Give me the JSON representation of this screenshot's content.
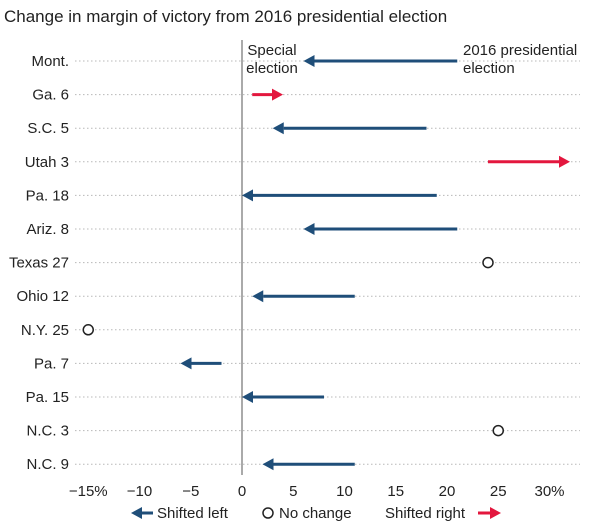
{
  "chart_data": {
    "type": "arrow-dot",
    "title": "Change in margin of victory from 2016 presidential election",
    "xlabel": "",
    "ylabel": "",
    "xlim": [
      -16,
      32
    ],
    "x_ticks": [
      -15,
      -10,
      -5,
      0,
      5,
      10,
      15,
      20,
      25,
      30
    ],
    "x_tick_labels": [
      "−15%",
      "−10",
      "−5",
      "0",
      "5",
      "10",
      "15",
      "20",
      "25",
      "30%"
    ],
    "colors": {
      "shifted_left": "#1f4e79",
      "shifted_right": "#e3173e",
      "no_change": "#222222"
    },
    "annotations": {
      "special_election": [
        "Special",
        "election"
      ],
      "presidential_2016": [
        "2016 presidential",
        "election"
      ]
    },
    "legend": {
      "shifted_left": "Shifted left",
      "no_change": "No change",
      "shifted_right": "Shifted right"
    },
    "rows": [
      {
        "label": "Mont.",
        "from_2016": 21,
        "special": 6,
        "direction": "left"
      },
      {
        "label": "Ga. 6",
        "from_2016": 1,
        "special": 4,
        "direction": "right"
      },
      {
        "label": "S.C. 5",
        "from_2016": 18,
        "special": 3,
        "direction": "left"
      },
      {
        "label": "Utah 3",
        "from_2016": 24,
        "special": 32,
        "direction": "right"
      },
      {
        "label": "Pa. 18",
        "from_2016": 19,
        "special": 0,
        "direction": "left"
      },
      {
        "label": "Ariz. 8",
        "from_2016": 21,
        "special": 6,
        "direction": "left"
      },
      {
        "label": "Texas 27",
        "from_2016": 24,
        "special": 24,
        "direction": "none"
      },
      {
        "label": "Ohio 12",
        "from_2016": 11,
        "special": 1,
        "direction": "left"
      },
      {
        "label": "N.Y. 25",
        "from_2016": -15,
        "special": -15,
        "direction": "none"
      },
      {
        "label": "Pa. 7",
        "from_2016": -2,
        "special": -6,
        "direction": "left"
      },
      {
        "label": "Pa. 15",
        "from_2016": 8,
        "special": 0,
        "direction": "left"
      },
      {
        "label": "N.C. 3",
        "from_2016": 25,
        "special": 25,
        "direction": "none"
      },
      {
        "label": "N.C. 9",
        "from_2016": 11,
        "special": 2,
        "direction": "left"
      }
    ]
  }
}
